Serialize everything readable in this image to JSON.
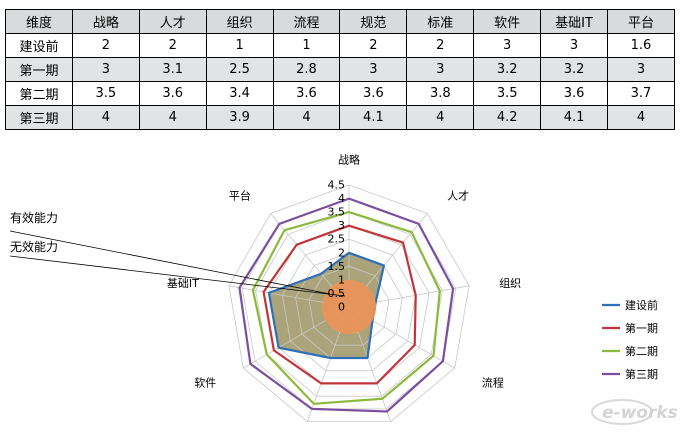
{
  "chart_data": {
    "type": "radar",
    "table_header": "维度",
    "axes": [
      "战略",
      "人才",
      "组织",
      "流程",
      "规范",
      "标准",
      "软件",
      "基础IT",
      "平台"
    ],
    "series": [
      {
        "name": "建设前",
        "color": "#2f6fb5",
        "values": [
          2,
          2,
          1,
          1,
          2,
          2,
          3,
          3,
          1.6
        ]
      },
      {
        "name": "第一期",
        "color": "#c0353a",
        "values": [
          3,
          3.1,
          2.5,
          2.8,
          3,
          3,
          3.2,
          3.2,
          3
        ]
      },
      {
        "name": "第二期",
        "color": "#8bba3c",
        "values": [
          3.5,
          3.6,
          3.4,
          3.6,
          3.6,
          3.8,
          3.5,
          3.6,
          3.7
        ]
      },
      {
        "name": "第三期",
        "color": "#7b4f9e",
        "values": [
          4,
          4,
          3.9,
          4,
          4.1,
          4,
          4.2,
          4.1,
          4
        ]
      }
    ],
    "scale_ticks": [
      "0",
      "0.5",
      "1",
      "1.5",
      "2",
      "2.5",
      "3",
      "3.5",
      "4",
      "4.5"
    ],
    "rmax": 4.5,
    "legend_position": "right"
  },
  "annotations": {
    "effective": "有效能力",
    "ineffective": "无效能力"
  },
  "colors": {
    "effective_fill": "#9c9463",
    "ineffective_fill": "#e8945a",
    "grid": "#c8c8c8"
  },
  "logo": {
    "text": "e-works"
  }
}
